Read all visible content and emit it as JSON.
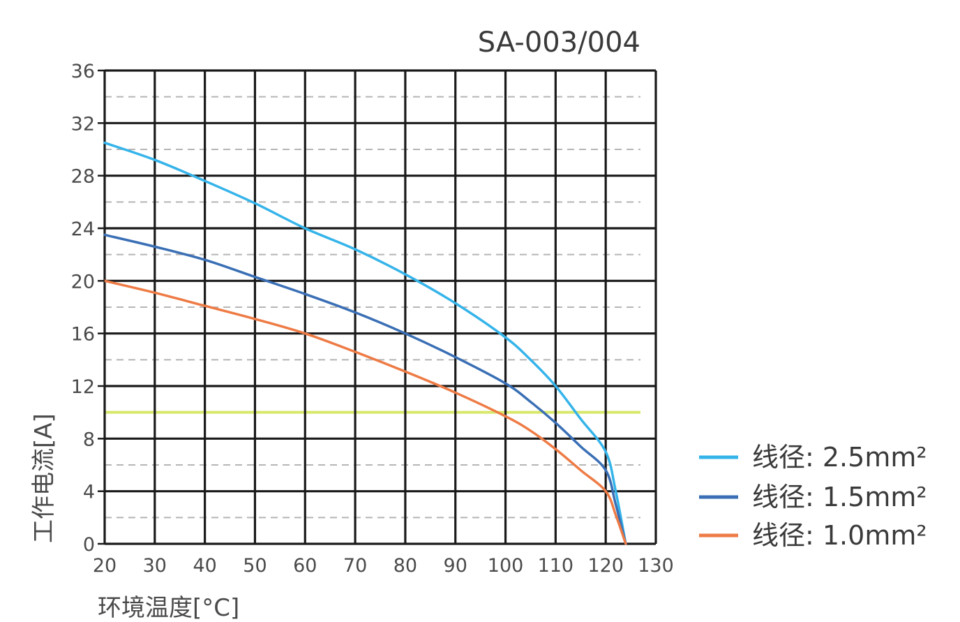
{
  "chart_data": {
    "type": "line",
    "title": "SA-003/004",
    "xlabel": "环境温度[°C]",
    "ylabel": "工作电流[A]",
    "xlim": [
      20,
      130
    ],
    "ylim": [
      0,
      36
    ],
    "xticks": [
      20,
      30,
      40,
      50,
      60,
      70,
      80,
      90,
      100,
      110,
      120,
      130
    ],
    "yticks": [
      0,
      4,
      8,
      12,
      16,
      20,
      24,
      28,
      32,
      36
    ],
    "grid": true,
    "minor_grid": "dashed at half-steps (2, 6, 10, ...)",
    "legend_position": "right-bottom",
    "reference_line": {
      "y": 10,
      "color": "#d8e86a"
    },
    "series": [
      {
        "name": "线径: 2.5mm²",
        "color": "#35b4ea",
        "x": [
          20,
          30,
          40,
          50,
          60,
          70,
          80,
          90,
          100,
          105,
          110,
          115,
          120,
          122,
          124
        ],
        "y": [
          30.5,
          29.2,
          27.6,
          25.9,
          24.0,
          22.4,
          20.5,
          18.3,
          15.7,
          14.0,
          12.0,
          9.5,
          7.0,
          4.0,
          0
        ]
      },
      {
        "name": "线径: 1.5mm²",
        "color": "#3a6fb5",
        "x": [
          20,
          30,
          40,
          50,
          60,
          70,
          80,
          90,
          100,
          105,
          110,
          115,
          120,
          122,
          124
        ],
        "y": [
          23.5,
          22.6,
          21.6,
          20.3,
          19.0,
          17.6,
          16.0,
          14.2,
          12.2,
          10.8,
          9.2,
          7.4,
          5.6,
          3.0,
          0
        ]
      },
      {
        "name": "线径: 1.0mm²",
        "color": "#ee7b45",
        "x": [
          20,
          30,
          40,
          50,
          60,
          70,
          80,
          90,
          100,
          105,
          110,
          115,
          120,
          122,
          124
        ],
        "y": [
          20.0,
          19.1,
          18.1,
          17.1,
          16.0,
          14.6,
          13.1,
          11.5,
          9.7,
          8.6,
          7.2,
          5.6,
          4.0,
          2.2,
          0
        ]
      }
    ]
  }
}
